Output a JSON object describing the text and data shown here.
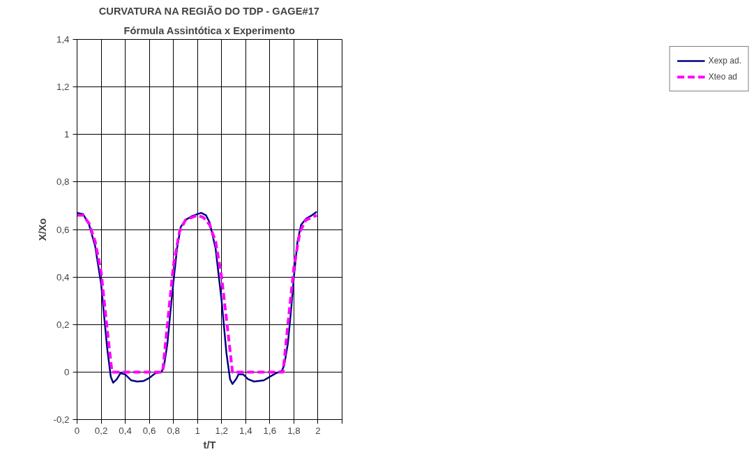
{
  "chart_data": {
    "type": "line",
    "title": "CURVATURA NA REGIÃO DO TDP - GAGE#17",
    "subtitle": "Fórmula Assintótica x Experimento",
    "xlabel": "t/T",
    "ylabel": "X/Xo",
    "xlim": [
      0,
      2.2
    ],
    "xticks": [
      {
        "value": 0,
        "label": "0"
      },
      {
        "value": 0.2,
        "label": "0,2"
      },
      {
        "value": 0.4,
        "label": "0,4"
      },
      {
        "value": 0.6,
        "label": "0,6"
      },
      {
        "value": 0.8,
        "label": "0,8"
      },
      {
        "value": 1,
        "label": "1"
      },
      {
        "value": 1.2,
        "label": "1,2"
      },
      {
        "value": 1.4,
        "label": "1,4"
      },
      {
        "value": 1.6,
        "label": "1,6"
      },
      {
        "value": 1.8,
        "label": "1,8"
      },
      {
        "value": 2,
        "label": "2"
      },
      {
        "value": 2.2,
        "label": null
      }
    ],
    "ylim": [
      -0.2,
      1.4
    ],
    "yticks": [
      {
        "value": -0.2,
        "label": "-0,2"
      },
      {
        "value": 0,
        "label": "0"
      },
      {
        "value": 0.2,
        "label": "0,2"
      },
      {
        "value": 0.4,
        "label": "0,4"
      },
      {
        "value": 0.6,
        "label": "0,6"
      },
      {
        "value": 0.8,
        "label": "0,8"
      },
      {
        "value": 1,
        "label": "1"
      },
      {
        "value": 1.2,
        "label": "1,2"
      },
      {
        "value": 1.4,
        "label": "1,4"
      }
    ],
    "grid": true,
    "legend": "right",
    "marker": "none",
    "series": [
      {
        "name": "Xexp ad.",
        "color": "#000080",
        "line_style": "solid",
        "x": [
          0,
          0.05,
          0.1,
          0.15,
          0.2,
          0.25,
          0.28,
          0.3,
          0.33,
          0.36,
          0.4,
          0.45,
          0.5,
          0.55,
          0.6,
          0.65,
          0.7,
          0.72,
          0.75,
          0.78,
          0.8,
          0.83,
          0.86,
          0.9,
          0.95,
          1.0,
          1.03,
          1.07,
          1.1,
          1.15,
          1.2,
          1.24,
          1.27,
          1.29,
          1.32,
          1.34,
          1.38,
          1.42,
          1.47,
          1.55,
          1.6,
          1.65,
          1.7,
          1.72,
          1.75,
          1.78,
          1.8,
          1.83,
          1.86,
          1.9,
          1.95,
          1.99
        ],
        "values": [
          0.67,
          0.665,
          0.62,
          0.53,
          0.37,
          0.1,
          -0.02,
          -0.045,
          -0.03,
          -0.005,
          -0.01,
          -0.035,
          -0.04,
          -0.038,
          -0.025,
          -0.005,
          0.0,
          0.02,
          0.12,
          0.28,
          0.38,
          0.52,
          0.61,
          0.64,
          0.655,
          0.665,
          0.67,
          0.66,
          0.63,
          0.52,
          0.3,
          0.08,
          -0.03,
          -0.05,
          -0.03,
          -0.01,
          -0.01,
          -0.03,
          -0.04,
          -0.035,
          -0.02,
          -0.005,
          0.005,
          0.03,
          0.12,
          0.28,
          0.4,
          0.55,
          0.62,
          0.645,
          0.66,
          0.675
        ]
      },
      {
        "name": "Xteo ad",
        "color": "#ff00ff",
        "line_style": "dashed",
        "x": [
          0,
          0.05,
          0.1,
          0.15,
          0.2,
          0.25,
          0.29,
          0.71,
          0.75,
          0.8,
          0.85,
          0.9,
          1.0,
          1.05,
          1.1,
          1.15,
          1.2,
          1.25,
          1.29,
          1.71,
          1.75,
          1.8,
          1.85,
          1.9,
          1.99
        ],
        "values": [
          0.66,
          0.66,
          0.625,
          0.55,
          0.42,
          0.18,
          0.0,
          0.0,
          0.2,
          0.45,
          0.59,
          0.64,
          0.66,
          0.65,
          0.62,
          0.55,
          0.4,
          0.18,
          0.0,
          0.0,
          0.2,
          0.44,
          0.59,
          0.64,
          0.66
        ]
      }
    ]
  }
}
